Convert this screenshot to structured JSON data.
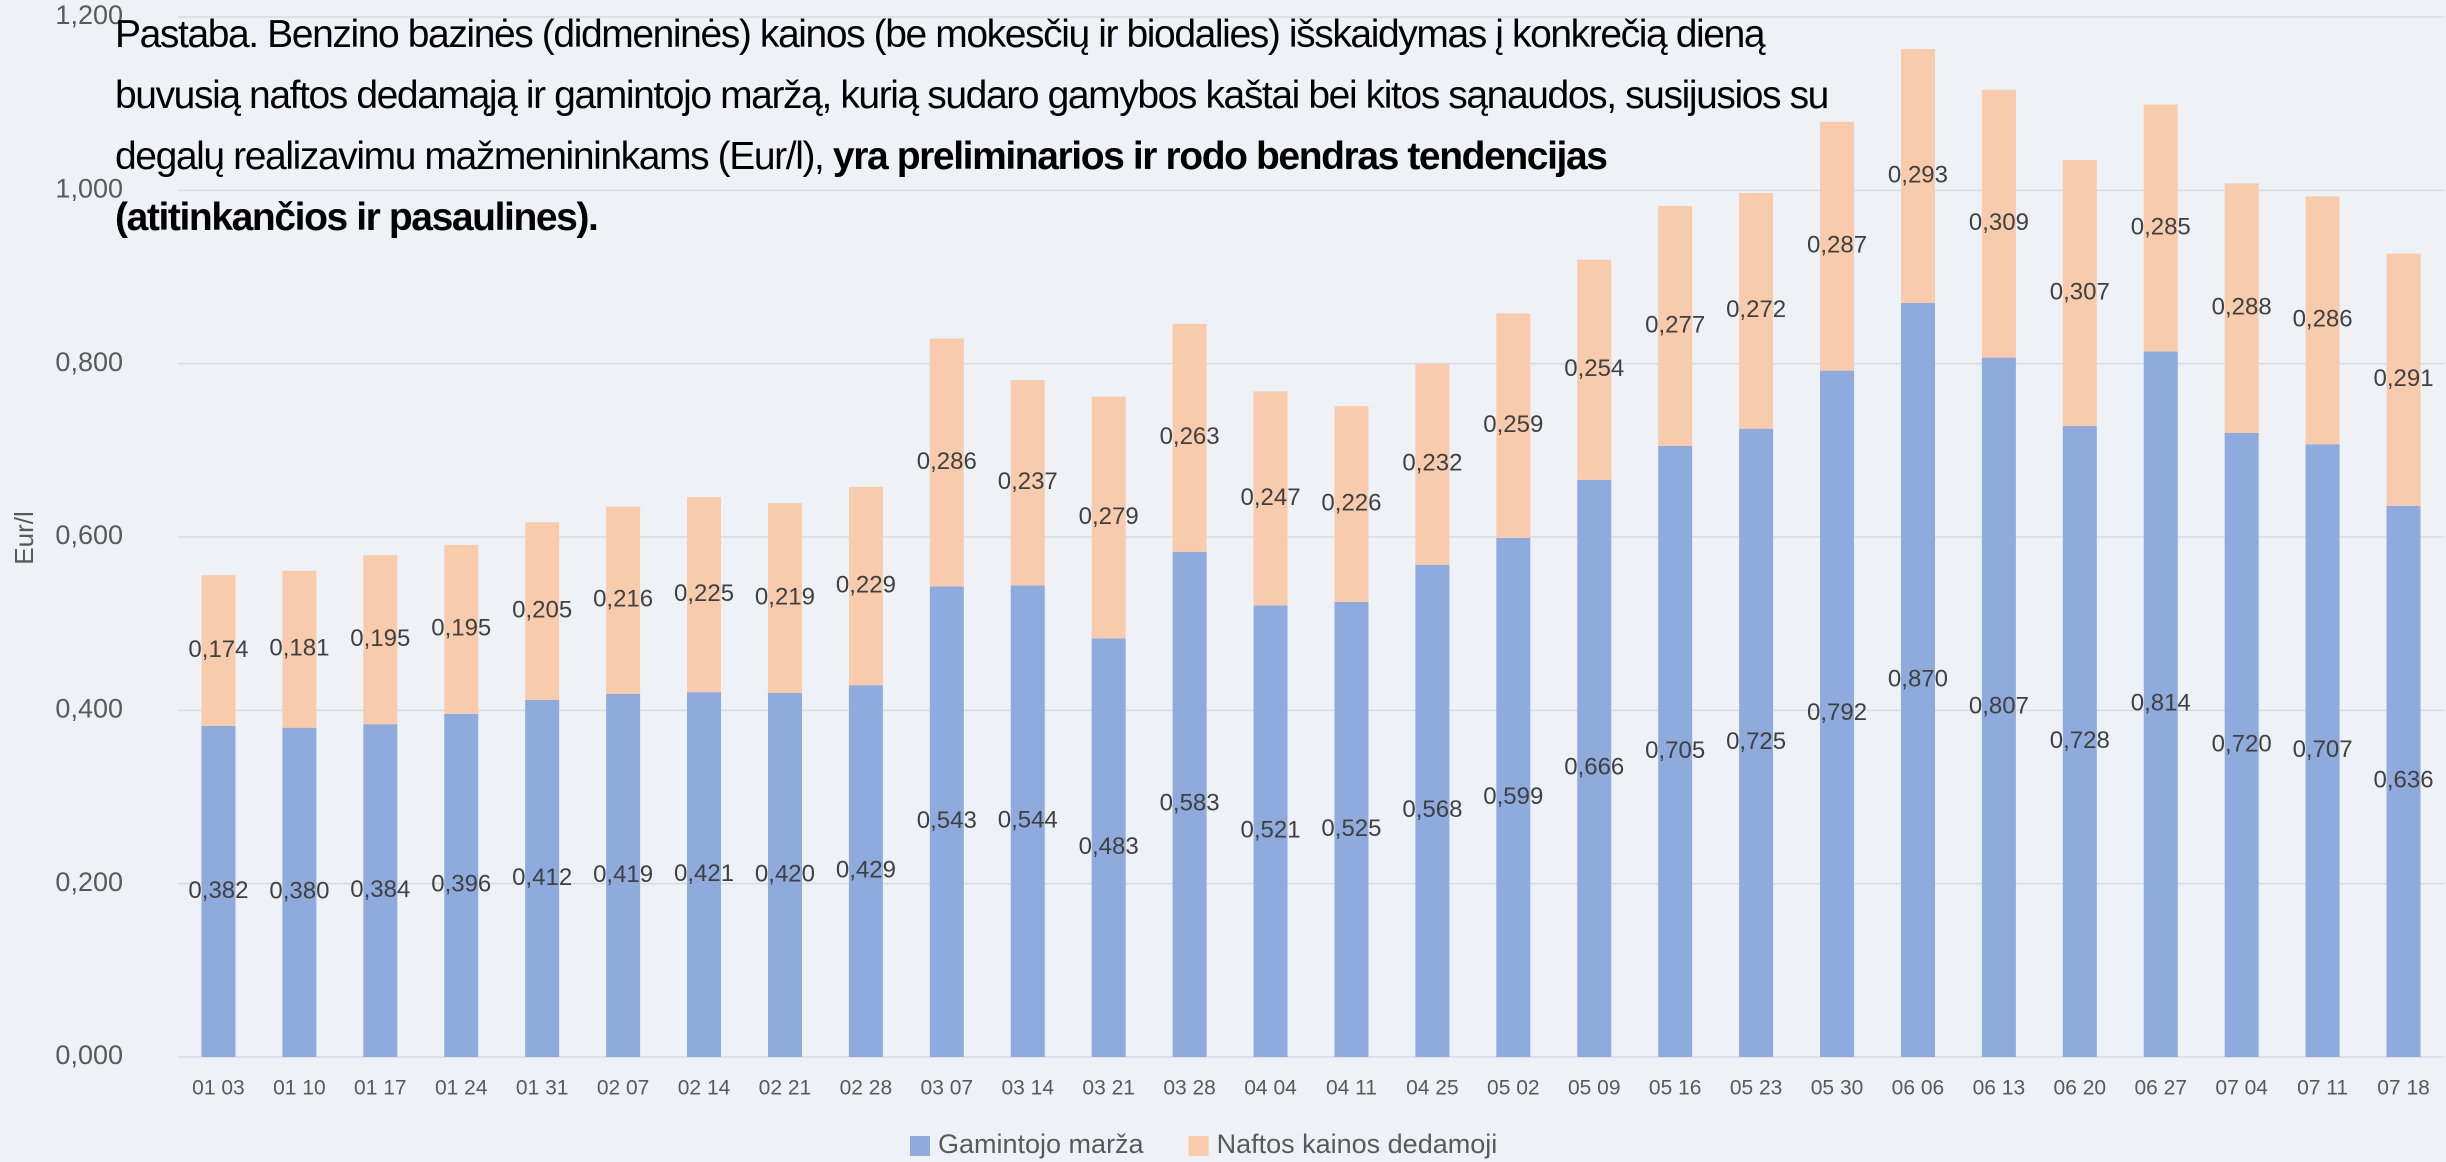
{
  "chart_data": {
    "type": "stacked_bar",
    "note": [
      "Pastaba. Benzino bazinės (didmeninės) kainos (be mokesčių ir biodalies) išskaidymas į konkrečią dieną buvusią naftos dedamąją ir gamintojo maržą, kurią sudaro gamybos kaštai bei kitos sąnaudos, susijusios su degalų realizavimu mažmenininkams (Eur/l), ",
      "yra preliminarios ir rodo bendras tendencijas (atitinkančios ir pasaulines)."
    ],
    "y_label": "Eur/l",
    "categories": [
      "01 03",
      "01 10",
      "01 17",
      "01 24",
      "01 31",
      "02 07",
      "02 14",
      "02 21",
      "02 28",
      "03 07",
      "03 14",
      "03 21",
      "03 28",
      "04 04",
      "04 11",
      "04 25",
      "05 02",
      "05 09",
      "05 16",
      "05 23",
      "05 30",
      "06 06",
      "06 13",
      "06 20",
      "06 27",
      "07 04",
      "07 11",
      "07 18"
    ],
    "series": [
      {
        "name": "Gamintojo marža",
        "color": "#8faadc",
        "values": [
          0.382,
          0.38,
          0.384,
          0.396,
          0.412,
          0.419,
          0.421,
          0.42,
          0.429,
          0.543,
          0.544,
          0.483,
          0.583,
          0.521,
          0.525,
          0.568,
          0.599,
          0.666,
          0.705,
          0.725,
          0.792,
          0.87,
          0.807,
          0.728,
          0.814,
          0.72,
          0.707,
          0.636
        ],
        "value_labels": [
          "0,382",
          "0,380",
          "0,384",
          "0,396",
          "0,412",
          "0,419",
          "0,421",
          "0,420",
          "0,429",
          "0,543",
          "0,544",
          "0,483",
          "0,583",
          "0,521",
          "0,525",
          "0,568",
          "0,599",
          "0,666",
          "0,705",
          "0,725",
          "0,792",
          "0,870",
          "0,807",
          "0,728",
          "0,814",
          "0,720",
          "0,707",
          "0,636"
        ]
      },
      {
        "name": "Naftos kainos dedamoji",
        "color": "#f8cbad",
        "values": [
          0.174,
          0.181,
          0.195,
          0.195,
          0.205,
          0.216,
          0.225,
          0.219,
          0.229,
          0.286,
          0.237,
          0.279,
          0.263,
          0.247,
          0.226,
          0.232,
          0.259,
          0.254,
          0.277,
          0.272,
          0.287,
          0.293,
          0.309,
          0.307,
          0.285,
          0.288,
          0.286,
          0.291
        ],
        "value_labels": [
          "0,174",
          "0,181",
          "0,195",
          "0,195",
          "0,205",
          "0,216",
          "0,225",
          "0,219",
          "0,229",
          "0,286",
          "0,237",
          "0,279",
          "0,263",
          "0,247",
          "0,226",
          "0,232",
          "0,259",
          "0,254",
          "0,277",
          "0,272",
          "0,287",
          "0,293",
          "0,309",
          "0,307",
          "0,285",
          "0,288",
          "0,286",
          "0,291"
        ]
      }
    ],
    "ylim": [
      0,
      1.2
    ],
    "yticks": [
      {
        "value": 0,
        "label": "0,000"
      },
      {
        "value": 0.2,
        "label": "0,200"
      },
      {
        "value": 0.4,
        "label": "0,400"
      },
      {
        "value": 0.6,
        "label": "0,600"
      },
      {
        "value": 0.8,
        "label": "0,800"
      },
      {
        "value": 1.0,
        "label": "1,000"
      },
      {
        "value": 1.2,
        "label": "1,200"
      }
    ],
    "grid": true,
    "legend": "bottom"
  }
}
